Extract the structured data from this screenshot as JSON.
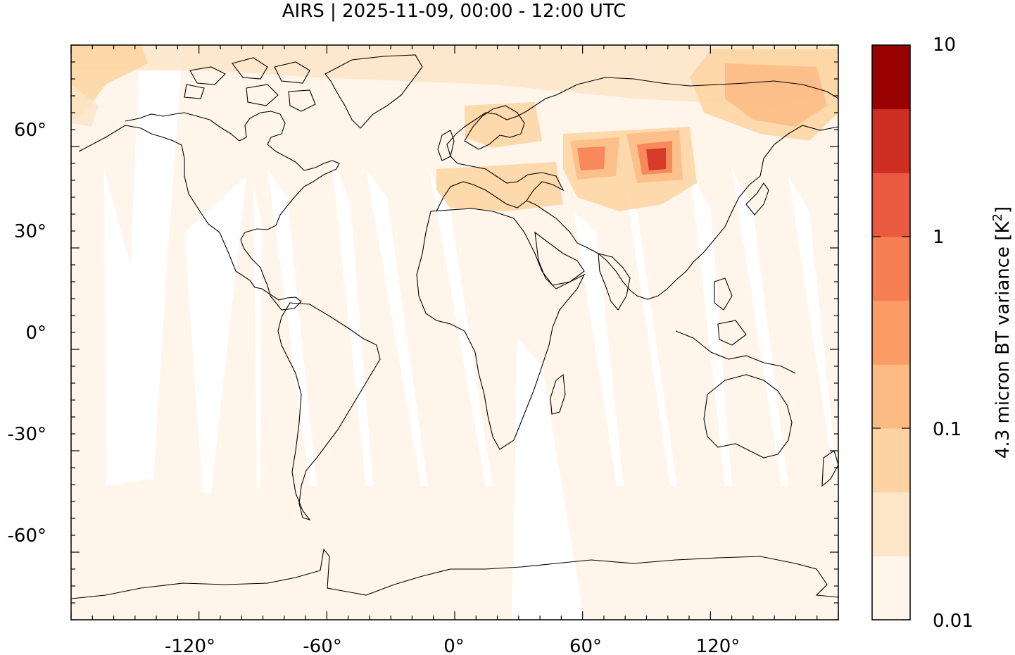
{
  "title": "AIRS | 2025-11-09, 00:00 - 12:00 UTC",
  "map": {
    "projection": "equirectangular",
    "lon_range": [
      -180,
      180
    ],
    "lat_range": [
      -80,
      90
    ],
    "lon_ticks": [
      "-120°",
      "-60°",
      "0°",
      "60°",
      "120°"
    ],
    "lat_ticks": [
      "60°",
      "30°",
      "0°",
      "-30°",
      "-60°"
    ],
    "background_color": "#fff5ea",
    "gap_color": "#ffffff",
    "coastline_color": "#000000"
  },
  "colorbar": {
    "label": "4.3 micron BT variance [K",
    "label_sup": "2",
    "label_close": "]",
    "scale": "log",
    "range": [
      0.01,
      10
    ],
    "tick_labels": [
      "10",
      "1",
      "0.1",
      "0.01"
    ],
    "colors": [
      "#fff5ea",
      "#fde5c8",
      "#fdd3a1",
      "#fdbb84",
      "#fc9c66",
      "#f67f54",
      "#ea5a40",
      "#cf2e22",
      "#990000"
    ]
  },
  "features": [
    {
      "name": "Central Asia high variance",
      "level": "0.5-2"
    },
    {
      "name": "Eastern Siberia elevated variance",
      "level": "0.1-0.5"
    },
    {
      "name": "Mediterranean elevated variance",
      "level": "0.05-0.2"
    }
  ]
}
